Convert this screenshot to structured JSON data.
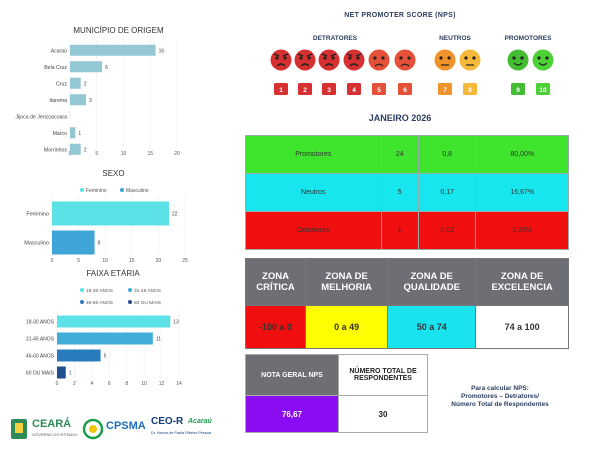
{
  "chart_data": [
    {
      "type": "bar",
      "orientation": "horizontal",
      "title": "MUNICÍPIO DE ORIGEM",
      "categories": [
        "Acaraú",
        "Bela Cruz",
        "Cruz",
        "Itarema",
        "Jijoca de Jericoacoara",
        "Marco",
        "Morrinhos"
      ],
      "values": [
        16,
        6,
        2,
        3,
        0,
        1,
        2
      ],
      "xlim": [
        0,
        20
      ],
      "xticks": [
        0,
        5,
        10,
        15,
        20
      ],
      "color": "#93c7d3"
    },
    {
      "type": "bar",
      "orientation": "horizontal",
      "title": "SEXO",
      "categories": [
        "Feminino",
        "Masculino"
      ],
      "values": [
        22,
        8
      ],
      "legend": [
        {
          "name": "Feminino",
          "color": "#5ce1e6"
        },
        {
          "name": "Masculino",
          "color": "#3fa5d6"
        }
      ],
      "colors": [
        "#5ce1e6",
        "#3fa5d6"
      ],
      "xlim": [
        0,
        25
      ],
      "xticks": [
        0,
        5,
        10,
        15,
        20,
        25
      ]
    },
    {
      "type": "bar",
      "orientation": "horizontal",
      "title": "FAIXA ETÁRIA",
      "categories": [
        "18-30 ANOS",
        "31-45 ANOS",
        "46-60 ANOS",
        "60 OU MAIS"
      ],
      "values": [
        13,
        11,
        5,
        1
      ],
      "legend": [
        {
          "name": "18-30 ANOS",
          "color": "#5ce1e6"
        },
        {
          "name": "31-45 ANOS",
          "color": "#40aed8"
        },
        {
          "name": "46-60 ANOS",
          "color": "#2a7bbd"
        },
        {
          "name": "60 OU MAIS",
          "color": "#1f4e8c"
        }
      ],
      "colors": [
        "#5ce1e6",
        "#40aed8",
        "#2a7bbd",
        "#1f4e8c"
      ],
      "xlim": [
        0,
        14
      ],
      "xticks": [
        0,
        2,
        4,
        6,
        8,
        10,
        12,
        14
      ]
    }
  ],
  "nps": {
    "title": "NET PROMOTER SCORE (NPS)",
    "groups": {
      "detratores": "DETRATORES",
      "neutros": "NEUTROS",
      "promotores": "PROMOTORES"
    },
    "scores": [
      {
        "label": "1",
        "group": "detratores",
        "color": "#d63031",
        "face": "angry"
      },
      {
        "label": "2",
        "group": "detratores",
        "color": "#d63031",
        "face": "angry"
      },
      {
        "label": "3",
        "group": "detratores",
        "color": "#d63031",
        "face": "angry"
      },
      {
        "label": "4",
        "group": "detratores",
        "color": "#d63031",
        "face": "angry"
      },
      {
        "label": "5",
        "group": "detratores",
        "color": "#e55039",
        "face": "sad"
      },
      {
        "label": "6",
        "group": "detratores",
        "color": "#e55039",
        "face": "sad"
      },
      {
        "label": "7",
        "group": "neutros",
        "color": "#f0932b",
        "face": "neutral"
      },
      {
        "label": "8",
        "group": "neutros",
        "color": "#f6b93b",
        "face": "neutral"
      },
      {
        "label": "9",
        "group": "promotores",
        "color": "#44bd32",
        "face": "happy"
      },
      {
        "label": "10",
        "group": "promotores",
        "color": "#4cd137",
        "face": "happy"
      }
    ]
  },
  "month": "JANEIRO 2026",
  "stats": [
    {
      "label": "Promotores",
      "count": "24",
      "ratio": "0,8",
      "percent": "80,00%",
      "color": "#3fe52c"
    },
    {
      "label": "Neutros",
      "count": "5",
      "ratio": "0,17",
      "percent": "16,67%",
      "color": "#17e6ee"
    },
    {
      "label": "Detratores",
      "count": "1",
      "ratio": "0,03",
      "percent": "3,33%",
      "color": "#f20f0f"
    }
  ],
  "zones": [
    {
      "title": "ZONA CRÍTICA",
      "range": "-100 a 0",
      "color": "#f00e0e"
    },
    {
      "title": "ZONA DE MELHORIA",
      "range": "0 a 49",
      "color": "#ffff00"
    },
    {
      "title": "ZONA DE QUALIDADE",
      "range": "50 a 74",
      "color": "#19e3ef"
    },
    {
      "title": "ZONA DE EXCELENCIA",
      "range": "74 a 100",
      "color": "#ffffff"
    }
  ],
  "summary": {
    "nota_label": "NOTA GERAL NPS",
    "nota_value": "76,67",
    "total_label": "NÚMERO TOTAL DE RESPONDENTES",
    "total_value": "30",
    "nota_color": "#8a0cf0"
  },
  "formula": {
    "line1": "Para calcular NPS:",
    "line2": "Promotores – Detratores/",
    "line3": "Número Total de Respondentes"
  },
  "logos": {
    "ceara": "CEARÁ",
    "ceara_sub": "GOVERNO DO ESTADO",
    "cpsma": "CPSMA",
    "ceor": "CEO-R",
    "ceor_place": "Acaraú",
    "ceor_sub": "Dr. Hector de Paula Ribeiro Pessoa"
  }
}
